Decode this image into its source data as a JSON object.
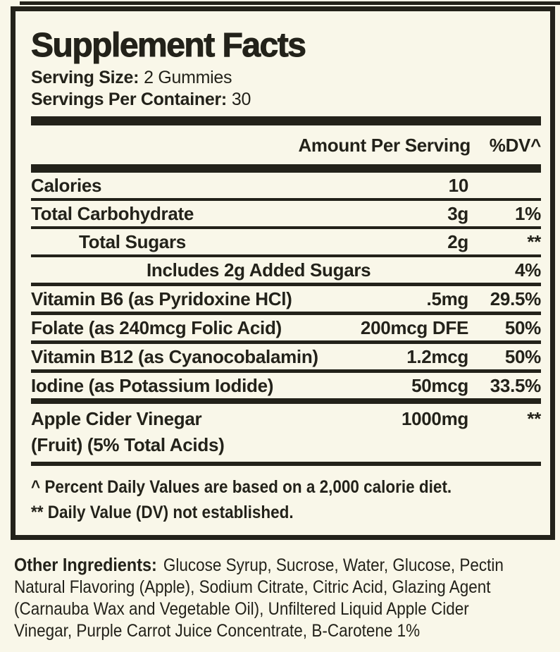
{
  "colors": {
    "background": "#f9f7e9",
    "ink": "#23221a"
  },
  "label_panel": {
    "title": "Supplement Facts",
    "serving_size": {
      "label": "Serving Size:",
      "value": "2 Gummies"
    },
    "servings_per_container": {
      "label": "Servings Per Container:",
      "value": "30"
    },
    "columns": {
      "amount": "Amount Per Serving",
      "daily_value": "%DV^"
    },
    "rows": [
      {
        "label": "Calories",
        "amount": "10",
        "dv": ""
      },
      {
        "label": "Total Carbohydrate",
        "amount": "3g",
        "dv": "1%"
      },
      {
        "label": "Total Sugars",
        "amount": "2g",
        "dv": "**"
      },
      {
        "label": "Includes 2g Added Sugars",
        "amount": "",
        "dv": "4%"
      },
      {
        "label": "Vitamin B6 (as Pyridoxine HCl)",
        "amount": ".5mg",
        "dv": "29.5%"
      },
      {
        "label": "Folate (as 240mcg Folic Acid)",
        "amount": "200mcg DFE",
        "dv": "50%"
      },
      {
        "label": "Vitamin B12 (as Cyanocobalamin)",
        "amount": "1.2mcg",
        "dv": "50%"
      },
      {
        "label": "Iodine (as Potassium Iodide)",
        "amount": "50mcg",
        "dv": "33.5%"
      },
      {
        "label": "Apple Cider Vinegar",
        "label_line2": "(Fruit) (5% Total Acids)",
        "amount": "1000mg",
        "dv": "**"
      }
    ],
    "footnotes": {
      "line1": "^ Percent Daily Values are based on a 2,000 calorie diet.",
      "line2": "** Daily Value (DV) not established."
    }
  },
  "other_ingredients": {
    "heading": "Other Ingredients:",
    "line1": "Glucose Syrup, Sucrose, Water, Glucose, Pectin",
    "line2": "Natural Flavoring (Apple), Sodium Citrate, Citric Acid, Glazing Agent",
    "line3": "(Carnauba Wax and Vegetable Oil), Unfiltered Liquid Apple Cider",
    "line4": "Vinegar, Purple Carrot Juice Concentrate, B-Carotene 1%"
  }
}
